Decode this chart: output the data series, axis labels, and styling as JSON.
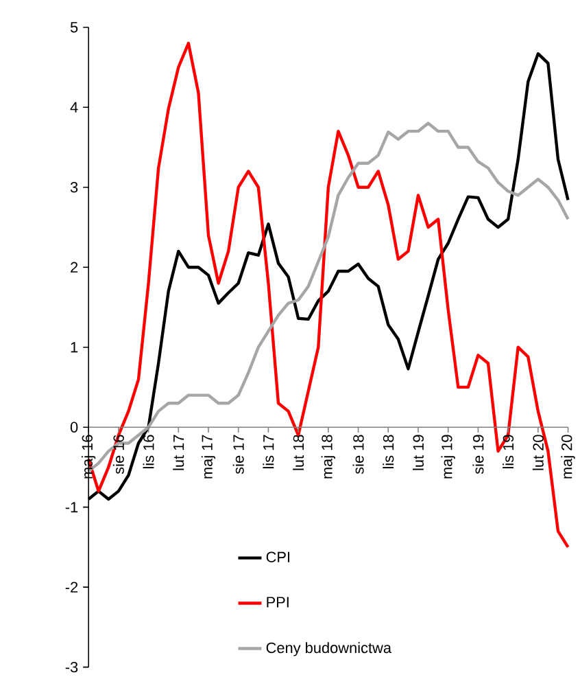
{
  "chart_data": {
    "type": "line",
    "categories": [
      "maj 16",
      null,
      null,
      "sie 16",
      null,
      null,
      "lis 16",
      null,
      null,
      "lut 17",
      null,
      null,
      "maj 17",
      null,
      null,
      "sie 17",
      null,
      null,
      "lis 17",
      null,
      null,
      "lut 18",
      null,
      null,
      "maj 18",
      null,
      null,
      "sie 18",
      null,
      null,
      "lis 18",
      null,
      null,
      "lut 19",
      null,
      null,
      "maj 19",
      null,
      null,
      "sie 19",
      null,
      null,
      "lis 19",
      null,
      null,
      "lut 20",
      null,
      null,
      "maj 20"
    ],
    "series": [
      {
        "name": "CPI",
        "color": "#000000",
        "values": [
          -0.9,
          -0.8,
          -0.9,
          -0.8,
          -0.6,
          -0.2,
          0.0,
          0.8,
          1.7,
          2.2,
          2.0,
          2.0,
          1.9,
          1.55,
          1.68,
          1.8,
          2.18,
          2.15,
          2.54,
          2.05,
          1.88,
          1.36,
          1.35,
          1.58,
          1.7,
          1.95,
          1.95,
          2.04,
          1.86,
          1.76,
          1.28,
          1.1,
          0.73,
          1.19,
          1.64,
          2.1,
          2.3,
          2.6,
          2.88,
          2.87,
          2.6,
          2.5,
          2.6,
          3.35,
          4.32,
          4.67,
          4.55,
          3.35,
          2.84
        ]
      },
      {
        "name": "PPI",
        "color": "#ff0000",
        "values": [
          -0.4,
          -0.8,
          -0.5,
          -0.1,
          0.2,
          0.6,
          1.8,
          3.24,
          3.98,
          4.5,
          4.8,
          4.18,
          2.4,
          1.8,
          2.2,
          3.0,
          3.2,
          3.0,
          1.8,
          0.3,
          0.2,
          -0.1,
          0.45,
          1.0,
          3.0,
          3.7,
          3.4,
          3.0,
          3.0,
          3.2,
          2.78,
          2.1,
          2.2,
          2.9,
          2.5,
          2.6,
          1.47,
          0.5,
          0.5,
          0.9,
          0.8,
          -0.3,
          -0.1,
          1.0,
          0.88,
          0.2,
          -0.3,
          -1.3,
          -1.5
        ]
      },
      {
        "name": "Ceny budownictwa",
        "color": "#a6a6a6",
        "values": [
          -0.55,
          -0.45,
          -0.3,
          -0.2,
          -0.2,
          -0.1,
          0.0,
          0.2,
          0.3,
          0.3,
          0.4,
          0.4,
          0.4,
          0.3,
          0.3,
          0.4,
          0.68,
          1.0,
          1.2,
          1.4,
          1.55,
          1.59,
          1.76,
          2.07,
          2.38,
          2.9,
          3.12,
          3.3,
          3.3,
          3.4,
          3.69,
          3.6,
          3.7,
          3.7,
          3.8,
          3.7,
          3.7,
          3.5,
          3.5,
          3.32,
          3.24,
          3.06,
          2.95,
          2.9,
          3.0,
          3.1,
          3.0,
          2.84,
          2.6
        ]
      }
    ],
    "ylim": [
      -3,
      5
    ],
    "yticks": [
      -3,
      -2,
      -1,
      0,
      1,
      2,
      3,
      4,
      5
    ],
    "legend": "bottom"
  }
}
